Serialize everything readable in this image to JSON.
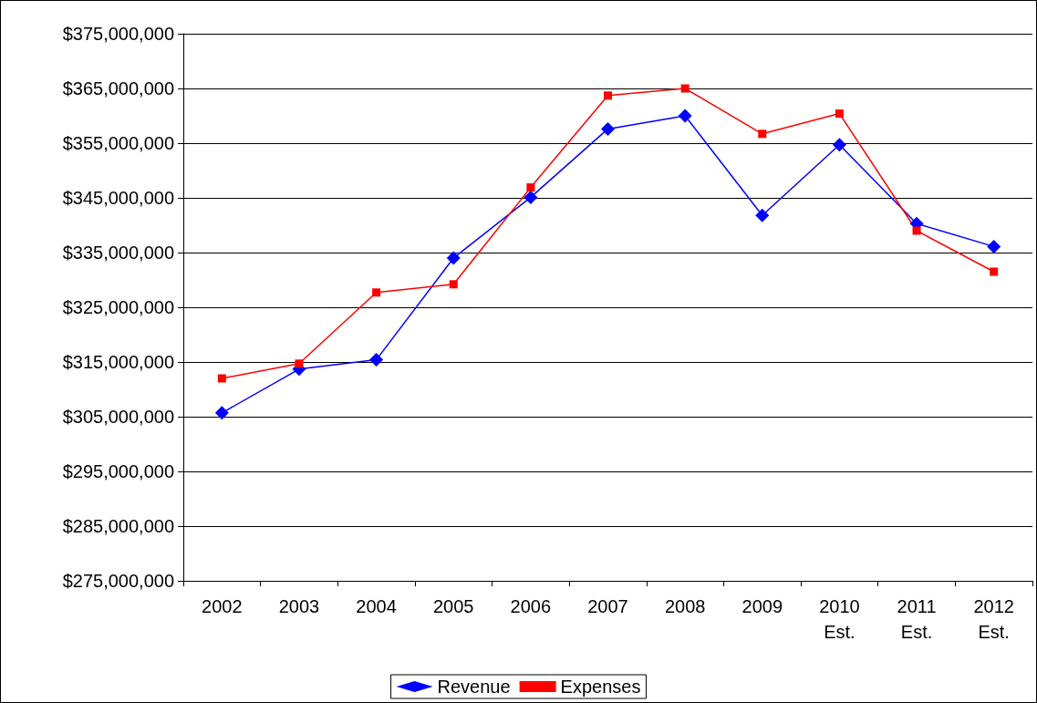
{
  "chart_data": {
    "type": "line",
    "categories": [
      "2002",
      "2003",
      "2004",
      "2005",
      "2006",
      "2007",
      "2008",
      "2009",
      "2010\nEst.",
      "2011\nEst.",
      "2012\nEst."
    ],
    "series": [
      {
        "name": "Revenue",
        "color": "#0000ff",
        "marker": "diamond",
        "values": [
          305700000,
          313700000,
          315400000,
          334000000,
          345100000,
          357600000,
          360000000,
          341800000,
          354700000,
          340300000,
          336100000
        ]
      },
      {
        "name": "Expenses",
        "color": "#ff0000",
        "marker": "square",
        "values": [
          312000000,
          314700000,
          327700000,
          329200000,
          346900000,
          363700000,
          365000000,
          356700000,
          360400000,
          339000000,
          331500000
        ]
      }
    ],
    "ylim": [
      275000000,
      375000000
    ],
    "yticks": [
      {
        "value": 275000000,
        "label": "$275,000,000"
      },
      {
        "value": 285000000,
        "label": "$285,000,000"
      },
      {
        "value": 295000000,
        "label": "$295,000,000"
      },
      {
        "value": 305000000,
        "label": "$305,000,000"
      },
      {
        "value": 315000000,
        "label": "$315,000,000"
      },
      {
        "value": 325000000,
        "label": "$325,000,000"
      },
      {
        "value": 335000000,
        "label": "$335,000,000"
      },
      {
        "value": 345000000,
        "label": "$345,000,000"
      },
      {
        "value": 355000000,
        "label": "$355,000,000"
      },
      {
        "value": 365000000,
        "label": "$365,000,000"
      },
      {
        "value": 375000000,
        "label": "$375,000,000"
      }
    ],
    "grid": "y",
    "legend": "bottom",
    "line_style": "solid"
  }
}
